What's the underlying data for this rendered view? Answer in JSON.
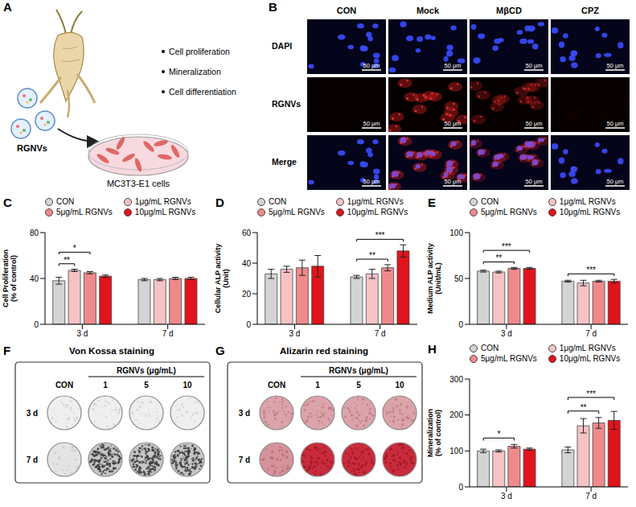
{
  "panel_labels": [
    "A",
    "B",
    "C",
    "D",
    "E",
    "F",
    "G",
    "H"
  ],
  "schematic": {
    "vesicles": "RGNVs",
    "cells": "MC3T3-E1 cells",
    "outcomes": [
      "Cell proliferation",
      "Mineralization",
      "Cell differentiation"
    ]
  },
  "microscopy": {
    "columns": [
      "CON",
      "Mock",
      "MβCD",
      "CPZ"
    ],
    "rows": [
      "DAPI",
      "RGNVs",
      "Merge"
    ],
    "scale_bar": "50 μm"
  },
  "staining": [
    {
      "title": "Von Kossa staining",
      "header": "RGNVs (μg/mL)",
      "columns": [
        "CON",
        "1",
        "5",
        "10"
      ],
      "rows": [
        "3 d",
        "7 d"
      ]
    },
    {
      "title": "Alizarin red staining",
      "header": "RGNVs (μg/mL)",
      "columns": [
        "CON",
        "1",
        "5",
        "10"
      ],
      "rows": [
        "3 d",
        "7 d"
      ]
    }
  ],
  "chart_data": [
    {
      "type": "bar",
      "ylabel": "Cell Proliferation (% of control)",
      "categories": [
        "3 d",
        "7 d"
      ],
      "ylim": [
        0,
        80
      ],
      "yticks": [
        0,
        40,
        80
      ],
      "legend": "top",
      "series": [
        {
          "name": "CON",
          "color": "#d4d4d4",
          "values": [
            38,
            39
          ],
          "errors": [
            3,
            1
          ]
        },
        {
          "name": "1μg/mL RGNVs",
          "color": "#f6c3c5",
          "values": [
            47,
            39
          ],
          "errors": [
            1,
            1
          ]
        },
        {
          "name": "5μg/mL RGNVs",
          "color": "#ef8a8c",
          "values": [
            45,
            40
          ],
          "errors": [
            1,
            1
          ]
        },
        {
          "name": "10μg/mL RGNVs",
          "color": "#e0141c",
          "values": [
            42,
            40
          ],
          "errors": [
            1,
            1
          ]
        }
      ],
      "annotations": [
        {
          "category": "3 d",
          "from": "CON",
          "to": "1μg/mL RGNVs",
          "label": "**"
        },
        {
          "category": "3 d",
          "from": "CON",
          "to": "5μg/mL RGNVs",
          "label": "*"
        }
      ]
    },
    {
      "type": "bar",
      "ylabel": "Cellular ALP activity (Unit)",
      "categories": [
        "3 d",
        "7 d"
      ],
      "ylim": [
        0,
        60
      ],
      "yticks": [
        0,
        20,
        40,
        60
      ],
      "legend": "top",
      "series": [
        {
          "name": "CON",
          "color": "#d4d4d4",
          "values": [
            33,
            31
          ],
          "errors": [
            3,
            1
          ]
        },
        {
          "name": "1μg/mL RGNVs",
          "color": "#f6c3c5",
          "values": [
            36,
            33
          ],
          "errors": [
            2,
            3
          ]
        },
        {
          "name": "5μg/mL RGNVs",
          "color": "#ef8a8c",
          "values": [
            37,
            37
          ],
          "errors": [
            5,
            2
          ]
        },
        {
          "name": "10μg/mL RGNVs",
          "color": "#e0141c",
          "values": [
            38,
            48
          ],
          "errors": [
            7,
            4
          ]
        }
      ],
      "annotations": [
        {
          "category": "7 d",
          "from": "CON",
          "to": "5μg/mL RGNVs",
          "label": "**"
        },
        {
          "category": "7 d",
          "from": "CON",
          "to": "10μg/mL RGNVs",
          "label": "***"
        }
      ]
    },
    {
      "type": "bar",
      "ylabel": "Medium ALP activity (Unit/mL)",
      "categories": [
        "3 d",
        "7 d"
      ],
      "ylim": [
        0,
        100
      ],
      "yticks": [
        0,
        50,
        100
      ],
      "legend": "top",
      "series": [
        {
          "name": "CON",
          "color": "#d4d4d4",
          "values": [
            58,
            47
          ],
          "errors": [
            1,
            1
          ]
        },
        {
          "name": "1μg/mL RGNVs",
          "color": "#f6c3c5",
          "values": [
            57,
            45
          ],
          "errors": [
            1,
            3
          ]
        },
        {
          "name": "5μg/mL RGNVs",
          "color": "#ef8a8c",
          "values": [
            61,
            47
          ],
          "errors": [
            1,
            1
          ]
        },
        {
          "name": "10μg/mL RGNVs",
          "color": "#e0141c",
          "values": [
            61,
            47
          ],
          "errors": [
            1,
            2
          ]
        }
      ],
      "annotations": [
        {
          "category": "3 d",
          "from": "CON",
          "to": "5μg/mL RGNVs",
          "label": "**"
        },
        {
          "category": "3 d",
          "from": "CON",
          "to": "10μg/mL RGNVs",
          "label": "***"
        },
        {
          "category": "7 d",
          "from": "CON",
          "to": "10μg/mL RGNVs",
          "label": "***"
        }
      ]
    },
    {
      "type": "bar",
      "ylabel": "Mineralization (% of control)",
      "categories": [
        "3 d",
        "7 d"
      ],
      "ylim": [
        0,
        300
      ],
      "yticks": [
        0,
        100,
        200,
        300
      ],
      "legend": "top",
      "series": [
        {
          "name": "CON",
          "color": "#d4d4d4",
          "values": [
            100,
            103
          ],
          "errors": [
            5,
            8
          ]
        },
        {
          "name": "1μg/mL RGNVs",
          "color": "#f6c3c5",
          "values": [
            100,
            170
          ],
          "errors": [
            3,
            20
          ]
        },
        {
          "name": "5μg/mL RGNVs",
          "color": "#ef8a8c",
          "values": [
            113,
            178
          ],
          "errors": [
            5,
            15
          ]
        },
        {
          "name": "10μg/mL RGNVs",
          "color": "#e0141c",
          "values": [
            105,
            185
          ],
          "errors": [
            3,
            25
          ]
        }
      ],
      "annotations": [
        {
          "category": "3 d",
          "from": "CON",
          "to": "5μg/mL RGNVs",
          "label": "*"
        },
        {
          "category": "7 d",
          "from": "CON",
          "to": "5μg/mL RGNVs",
          "label": "**"
        },
        {
          "category": "7 d",
          "from": "CON",
          "to": "10μg/mL RGNVs",
          "label": "***"
        }
      ]
    }
  ]
}
